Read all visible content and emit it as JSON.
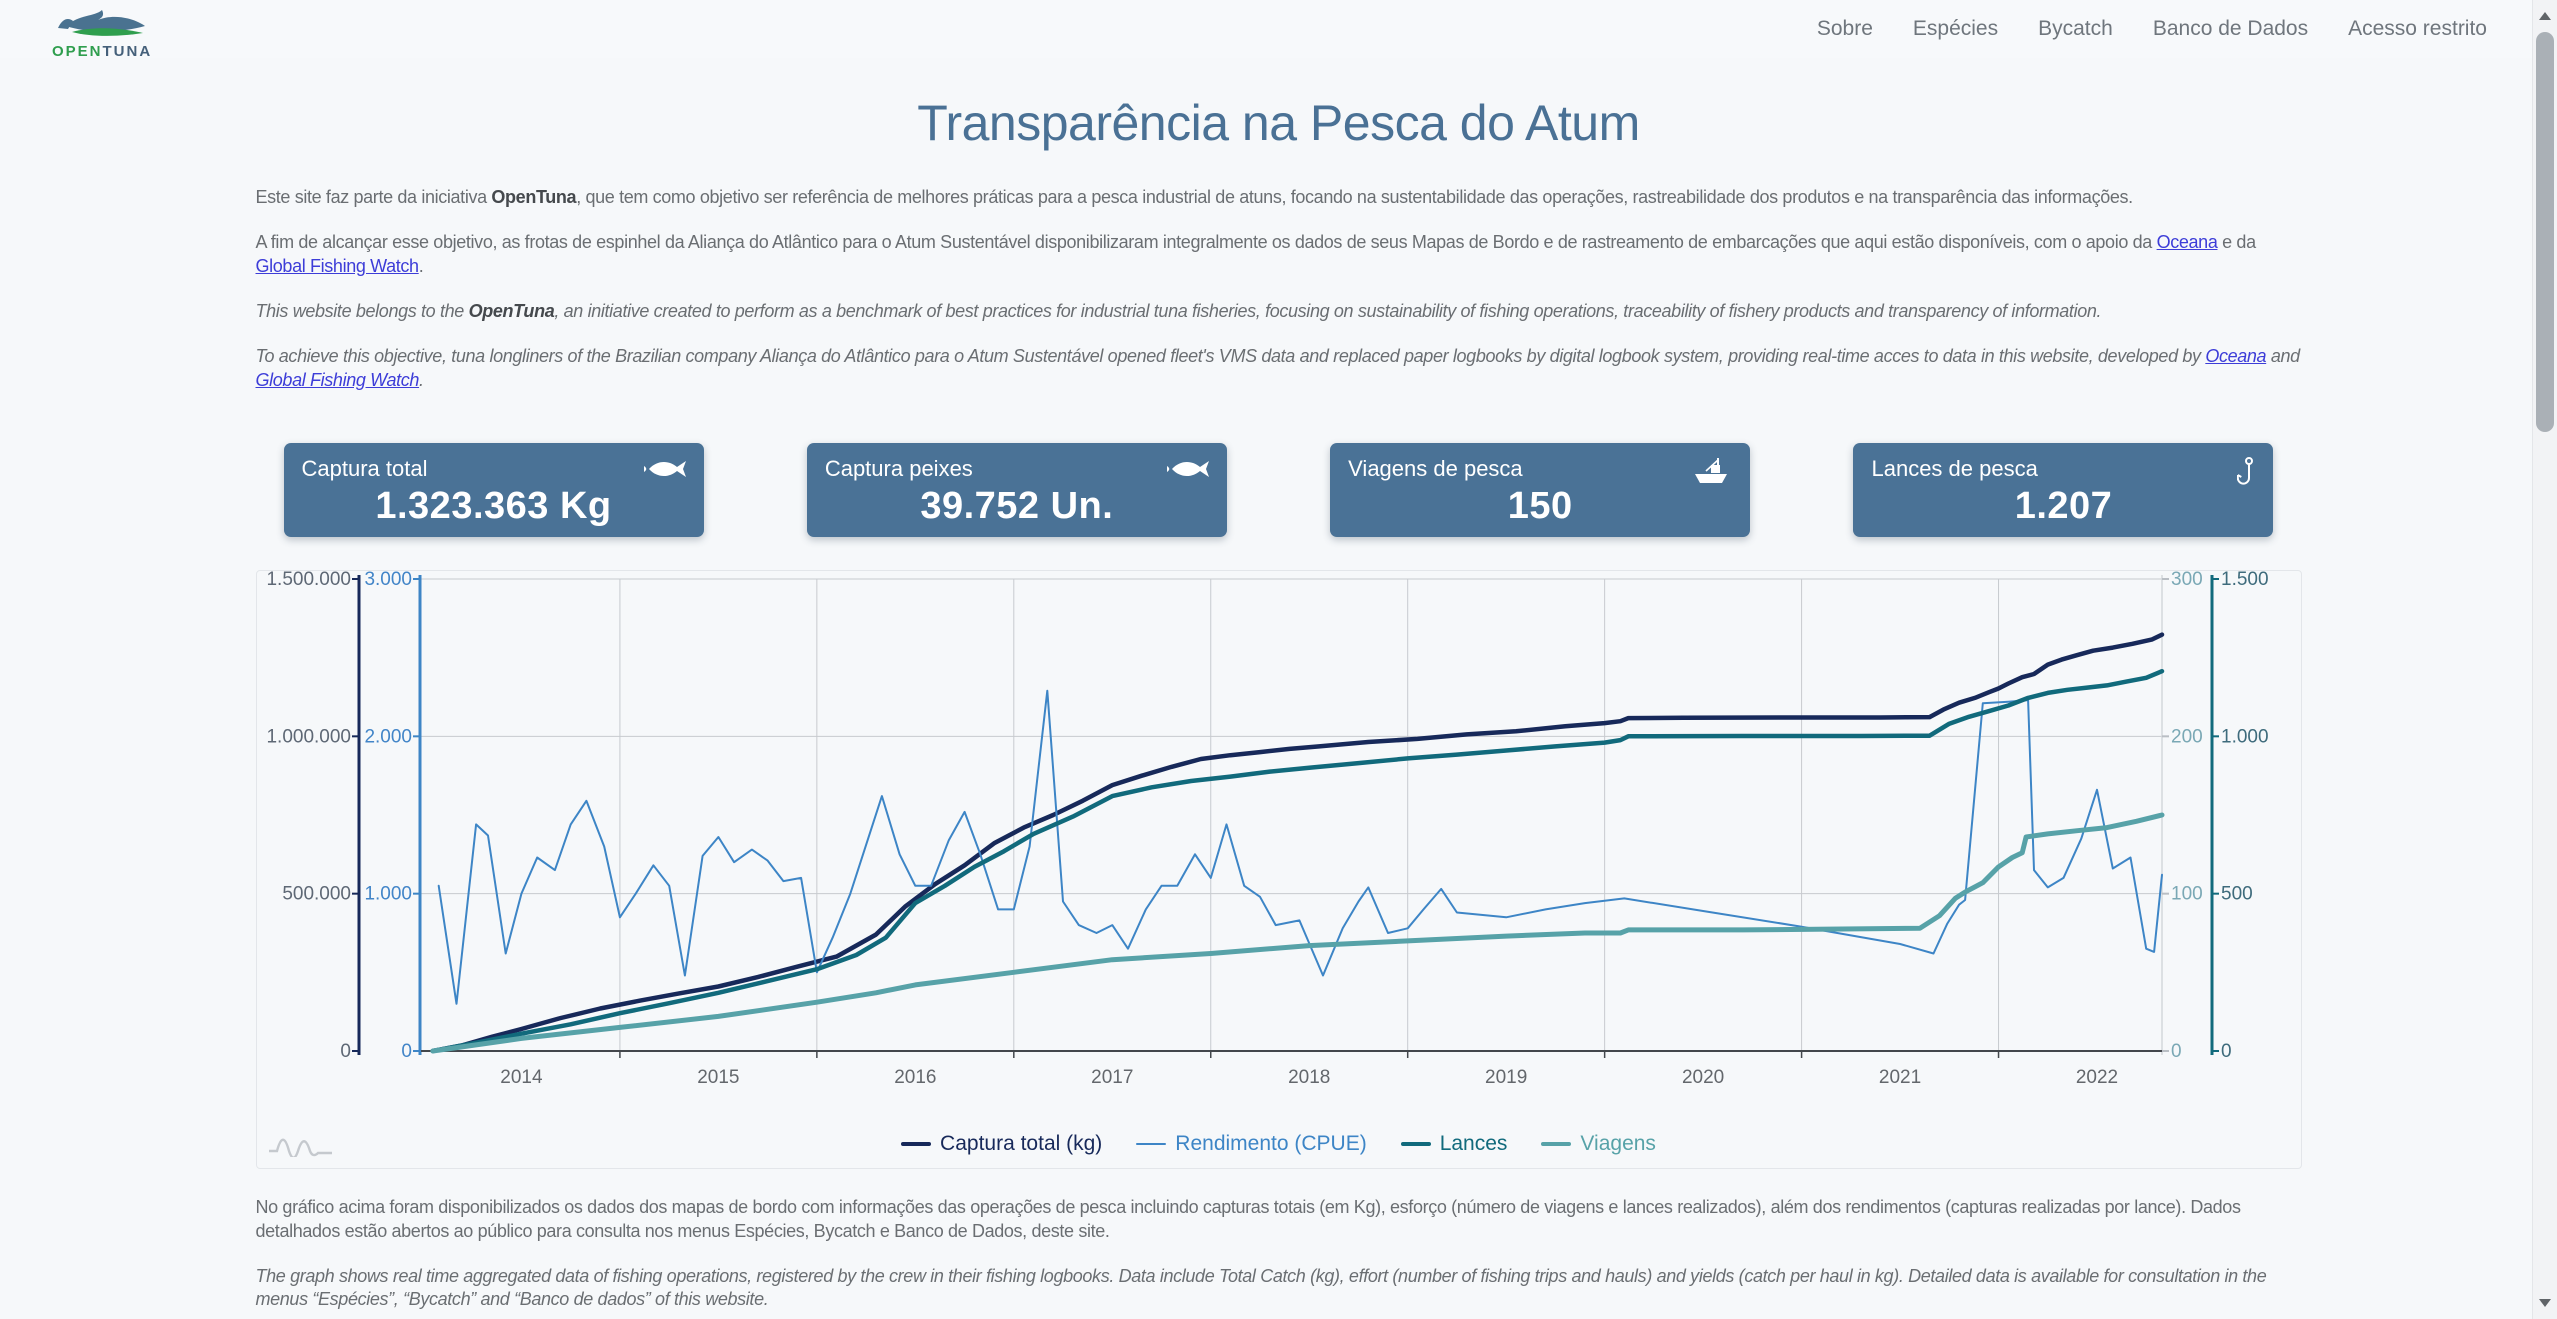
{
  "colors": {
    "accent": "#4a7296",
    "title": "#4a7195",
    "link": "#3d3dd8",
    "navy": "#17295a",
    "blue": "#3d85c6",
    "teal_dark": "#116a7c",
    "teal_light": "#57a2a8",
    "page_bg": "#f6f8fa"
  },
  "header": {
    "logo": {
      "open": "OPEN",
      "tuna": "TUNA"
    },
    "nav": [
      {
        "label": "Sobre"
      },
      {
        "label": "Espécies"
      },
      {
        "label": "Bycatch"
      },
      {
        "label": "Banco de Dados"
      },
      {
        "label": "Acesso restrito"
      }
    ]
  },
  "title": "Transparência na Pesca do Atum",
  "intro": {
    "p1": [
      {
        "text": "Este site faz parte da iniciativa ",
        "style": "plain"
      },
      {
        "text": "OpenTuna",
        "style": "bold"
      },
      {
        "text": ", que tem como objetivo ser referência de melhores práticas para a pesca industrial de atuns, focando na sustentabilidade das operações, rastreabilidade dos produtos e na transparência das informações.",
        "style": "plain"
      }
    ],
    "p2": [
      {
        "text": "A fim de alcançar esse objetivo, as frotas de espinhel da Aliança do Atlântico para o Atum Sustentável disponibilizaram integralmente os dados de seus Mapas de Bordo e de rastreamento de embarcações que aqui estão disponíveis, com o apoio da ",
        "style": "plain"
      },
      {
        "text": "Oceana",
        "style": "link"
      },
      {
        "text": " e da ",
        "style": "plain"
      },
      {
        "text": "Global Fishing Watch",
        "style": "link"
      },
      {
        "text": ".",
        "style": "plain"
      }
    ],
    "p3": [
      {
        "text": "This website belongs to the ",
        "style": "plain"
      },
      {
        "text": "OpenTuna",
        "style": "bold"
      },
      {
        "text": ", an initiative created to perform as a benchmark of best practices for industrial tuna fisheries, focusing on sustainability of fishing operations, traceability of fishery products and transparency of information.",
        "style": "plain"
      }
    ],
    "p4": [
      {
        "text": "To achieve this objective, tuna longliners of the Brazilian company Aliança do Atlântico para o Atum Sustentável opened fleet's VMS data and replaced paper logbooks by digital logbook system, providing real-time acces to data in this website, developed by ",
        "style": "plain"
      },
      {
        "text": "Oceana",
        "style": "link"
      },
      {
        "text": " and ",
        "style": "plain"
      },
      {
        "text": "Global Fishing Watch",
        "style": "link"
      },
      {
        "text": ".",
        "style": "plain"
      }
    ]
  },
  "cards": [
    {
      "label": "Captura total",
      "value": "1.323.363 Kg",
      "icon": "fish-icon"
    },
    {
      "label": "Captura peixes",
      "value": "39.752 Un.",
      "icon": "fish-icon"
    },
    {
      "label": "Viagens de pesca",
      "value": "150",
      "icon": "boat-icon"
    },
    {
      "label": "Lances de pesca",
      "value": "1.207",
      "icon": "hook-icon"
    }
  ],
  "chart_data": {
    "type": "line",
    "title": "",
    "x_axis": {
      "domain": [
        2013.49,
        2022.33
      ],
      "labels": [
        "2014",
        "2015",
        "2016",
        "2017",
        "2018",
        "2019",
        "2020",
        "2021",
        "2022"
      ]
    },
    "axes": {
      "captura": {
        "range": [
          0,
          1500000
        ],
        "ticks": [
          "0",
          "500.000",
          "1.000.000",
          "1.500.000"
        ],
        "color": "#17295a",
        "tick_color": "#5e6875"
      },
      "cpue": {
        "range": [
          0,
          3000
        ],
        "ticks": [
          "0",
          "1.000",
          "2.000",
          "3.000"
        ],
        "color": "#3d85c6",
        "tick_color": "#4285c8"
      },
      "viagens": {
        "range": [
          0,
          300
        ],
        "ticks": [
          "0",
          "100",
          "200",
          "300"
        ],
        "color": "#57a2a8",
        "tick_color": "#7aa8b5"
      },
      "lances": {
        "range": [
          0,
          1500
        ],
        "ticks": [
          "0",
          "500",
          "1.000",
          "1.500"
        ],
        "color": "#116a7c",
        "tick_color": "#3e6b7c"
      }
    },
    "series": [
      {
        "name": "Captura total (kg)",
        "axis": "captura",
        "color": "#17295a",
        "width": 4.5,
        "points": [
          [
            2013.55,
            0
          ],
          [
            2013.7,
            18000
          ],
          [
            2013.85,
            45000
          ],
          [
            2014.0,
            70000
          ],
          [
            2014.2,
            105000
          ],
          [
            2014.4,
            135000
          ],
          [
            2014.6,
            160000
          ],
          [
            2014.8,
            183000
          ],
          [
            2015.0,
            205000
          ],
          [
            2015.2,
            235000
          ],
          [
            2015.4,
            268000
          ],
          [
            2015.6,
            300000
          ],
          [
            2015.8,
            370000
          ],
          [
            2015.95,
            460000
          ],
          [
            2016.1,
            530000
          ],
          [
            2016.25,
            590000
          ],
          [
            2016.4,
            660000
          ],
          [
            2016.55,
            710000
          ],
          [
            2016.7,
            750000
          ],
          [
            2016.85,
            795000
          ],
          [
            2017.0,
            845000
          ],
          [
            2017.15,
            875000
          ],
          [
            2017.3,
            903000
          ],
          [
            2017.45,
            928000
          ],
          [
            2017.6,
            940000
          ],
          [
            2017.75,
            950000
          ],
          [
            2017.9,
            960000
          ],
          [
            2018.05,
            968000
          ],
          [
            2018.3,
            982000
          ],
          [
            2018.55,
            992000
          ],
          [
            2018.8,
            1006000
          ],
          [
            2019.05,
            1016000
          ],
          [
            2019.3,
            1032000
          ],
          [
            2019.5,
            1042000
          ],
          [
            2019.58,
            1048000
          ],
          [
            2019.62,
            1058000
          ],
          [
            2019.9,
            1059000
          ],
          [
            2020.4,
            1060000
          ],
          [
            2020.9,
            1060000
          ],
          [
            2021.15,
            1061000
          ],
          [
            2021.22,
            1085000
          ],
          [
            2021.3,
            1107000
          ],
          [
            2021.38,
            1122000
          ],
          [
            2021.45,
            1140000
          ],
          [
            2021.5,
            1152000
          ],
          [
            2021.55,
            1168000
          ],
          [
            2021.62,
            1188000
          ],
          [
            2021.68,
            1198000
          ],
          [
            2021.75,
            1228000
          ],
          [
            2021.82,
            1244000
          ],
          [
            2021.9,
            1258000
          ],
          [
            2021.98,
            1272000
          ],
          [
            2022.08,
            1282000
          ],
          [
            2022.18,
            1294000
          ],
          [
            2022.28,
            1308000
          ],
          [
            2022.33,
            1323363
          ]
        ]
      },
      {
        "name": "Rendimento (CPUE)",
        "axis": "cpue",
        "color": "#3d85c6",
        "width": 2,
        "points": [
          [
            2013.58,
            1050
          ],
          [
            2013.67,
            300
          ],
          [
            2013.77,
            1440
          ],
          [
            2013.83,
            1370
          ],
          [
            2013.92,
            620
          ],
          [
            2014.0,
            1000
          ],
          [
            2014.08,
            1230
          ],
          [
            2014.17,
            1150
          ],
          [
            2014.25,
            1440
          ],
          [
            2014.33,
            1590
          ],
          [
            2014.42,
            1300
          ],
          [
            2014.5,
            850
          ],
          [
            2014.58,
            1000
          ],
          [
            2014.67,
            1180
          ],
          [
            2014.75,
            1050
          ],
          [
            2014.83,
            480
          ],
          [
            2014.92,
            1240
          ],
          [
            2015.0,
            1360
          ],
          [
            2015.08,
            1200
          ],
          [
            2015.17,
            1280
          ],
          [
            2015.25,
            1210
          ],
          [
            2015.33,
            1080
          ],
          [
            2015.42,
            1100
          ],
          [
            2015.5,
            500
          ],
          [
            2015.58,
            720
          ],
          [
            2015.67,
            1000
          ],
          [
            2015.83,
            1620
          ],
          [
            2015.92,
            1250
          ],
          [
            2016.0,
            1050
          ],
          [
            2016.08,
            1050
          ],
          [
            2016.17,
            1340
          ],
          [
            2016.25,
            1520
          ],
          [
            2016.33,
            1250
          ],
          [
            2016.42,
            900
          ],
          [
            2016.5,
            900
          ],
          [
            2016.58,
            1300
          ],
          [
            2016.67,
            2290
          ],
          [
            2016.75,
            950
          ],
          [
            2016.83,
            800
          ],
          [
            2016.92,
            750
          ],
          [
            2017.0,
            800
          ],
          [
            2017.08,
            650
          ],
          [
            2017.17,
            900
          ],
          [
            2017.25,
            1050
          ],
          [
            2017.33,
            1050
          ],
          [
            2017.42,
            1250
          ],
          [
            2017.5,
            1100
          ],
          [
            2017.58,
            1440
          ],
          [
            2017.67,
            1050
          ],
          [
            2017.75,
            980
          ],
          [
            2017.83,
            800
          ],
          [
            2017.95,
            830
          ],
          [
            2018.07,
            480
          ],
          [
            2018.17,
            780
          ],
          [
            2018.25,
            950
          ],
          [
            2018.3,
            1040
          ],
          [
            2018.4,
            750
          ],
          [
            2018.5,
            780
          ],
          [
            2018.58,
            900
          ],
          [
            2018.67,
            1030
          ],
          [
            2018.75,
            880
          ],
          [
            2019.0,
            850
          ],
          [
            2019.2,
            900
          ],
          [
            2019.4,
            940
          ],
          [
            2019.6,
            970
          ],
          [
            2020.0,
            890
          ],
          [
            2020.5,
            790
          ],
          [
            2021.0,
            680
          ],
          [
            2021.17,
            620
          ],
          [
            2021.24,
            810
          ],
          [
            2021.3,
            930
          ],
          [
            2021.33,
            960
          ],
          [
            2021.42,
            2210
          ],
          [
            2021.55,
            2220
          ],
          [
            2021.65,
            2230
          ],
          [
            2021.68,
            1150
          ],
          [
            2021.75,
            1040
          ],
          [
            2021.83,
            1100
          ],
          [
            2021.92,
            1350
          ],
          [
            2022.0,
            1660
          ],
          [
            2022.08,
            1160
          ],
          [
            2022.17,
            1230
          ],
          [
            2022.25,
            650
          ],
          [
            2022.29,
            630
          ],
          [
            2022.33,
            1120
          ]
        ]
      },
      {
        "name": "Lances",
        "axis": "lances",
        "color": "#116a7c",
        "width": 4.5,
        "points": [
          [
            2013.55,
            0
          ],
          [
            2013.8,
            30
          ],
          [
            2014.0,
            55
          ],
          [
            2014.25,
            85
          ],
          [
            2014.5,
            120
          ],
          [
            2014.75,
            152
          ],
          [
            2015.0,
            185
          ],
          [
            2015.25,
            222
          ],
          [
            2015.5,
            260
          ],
          [
            2015.7,
            305
          ],
          [
            2015.85,
            360
          ],
          [
            2016.0,
            470
          ],
          [
            2016.15,
            525
          ],
          [
            2016.3,
            585
          ],
          [
            2016.45,
            635
          ],
          [
            2016.6,
            690
          ],
          [
            2016.8,
            745
          ],
          [
            2017.0,
            810
          ],
          [
            2017.2,
            838
          ],
          [
            2017.4,
            858
          ],
          [
            2017.6,
            872
          ],
          [
            2017.8,
            888
          ],
          [
            2018.0,
            900
          ],
          [
            2018.25,
            915
          ],
          [
            2018.5,
            930
          ],
          [
            2018.75,
            942
          ],
          [
            2019.0,
            955
          ],
          [
            2019.25,
            968
          ],
          [
            2019.5,
            980
          ],
          [
            2019.58,
            988
          ],
          [
            2019.62,
            1000
          ],
          [
            2020.2,
            1001
          ],
          [
            2020.8,
            1001
          ],
          [
            2021.15,
            1002
          ],
          [
            2021.25,
            1040
          ],
          [
            2021.35,
            1062
          ],
          [
            2021.45,
            1080
          ],
          [
            2021.55,
            1098
          ],
          [
            2021.65,
            1122
          ],
          [
            2021.75,
            1138
          ],
          [
            2021.85,
            1148
          ],
          [
            2021.95,
            1155
          ],
          [
            2022.05,
            1162
          ],
          [
            2022.15,
            1174
          ],
          [
            2022.25,
            1186
          ],
          [
            2022.33,
            1207
          ]
        ]
      },
      {
        "name": "Viagens",
        "axis": "viagens",
        "color": "#57a2a8",
        "width": 5,
        "points": [
          [
            2013.55,
            0
          ],
          [
            2014.0,
            8
          ],
          [
            2014.5,
            15
          ],
          [
            2015.0,
            22
          ],
          [
            2015.5,
            31
          ],
          [
            2015.8,
            37
          ],
          [
            2016.0,
            42
          ],
          [
            2016.5,
            50
          ],
          [
            2017.0,
            58
          ],
          [
            2017.5,
            62
          ],
          [
            2018.0,
            67
          ],
          [
            2018.5,
            70
          ],
          [
            2019.0,
            73
          ],
          [
            2019.4,
            75
          ],
          [
            2019.58,
            75
          ],
          [
            2019.62,
            77
          ],
          [
            2020.2,
            77
          ],
          [
            2021.1,
            78
          ],
          [
            2021.2,
            86
          ],
          [
            2021.28,
            97
          ],
          [
            2021.33,
            101
          ],
          [
            2021.42,
            107
          ],
          [
            2021.5,
            117
          ],
          [
            2021.57,
            123
          ],
          [
            2021.62,
            126
          ],
          [
            2021.64,
            136
          ],
          [
            2021.75,
            138
          ],
          [
            2021.9,
            140
          ],
          [
            2022.05,
            142
          ],
          [
            2022.2,
            146
          ],
          [
            2022.33,
            150
          ]
        ]
      }
    ],
    "legend_position": "bottom",
    "grid": true
  },
  "below": {
    "p5": [
      {
        "text": "No gráfico acima foram disponibilizados os dados dos mapas de bordo com informações das operações de pesca incluindo capturas totais (em Kg), esforço (número de viagens e lances realizados), além dos rendimentos (capturas realizadas por lance). Dados detalhados estão abertos ao público para consulta nos menus Espécies, Bycatch e Banco de Dados, deste site.",
        "style": "plain"
      }
    ],
    "p6": [
      {
        "text": "The graph shows real time aggregated data of fishing operations, registered by the crew in their fishing logbooks. Data include Total Catch (kg), effort (number of fishing trips and hauls) and yields (catch per haul in kg). Detailed data is available for consultation in the menus “Espécies”, “Bycatch” and “Banco de dados” of this website.",
        "style": "plain"
      }
    ]
  }
}
